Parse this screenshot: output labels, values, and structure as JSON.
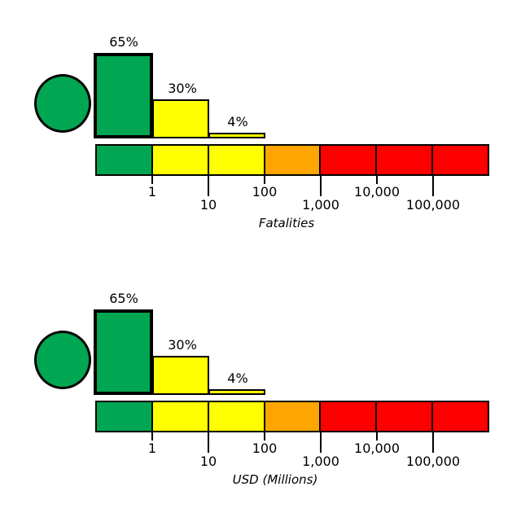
{
  "colors": {
    "green": "#00A651",
    "yellow": "#FFFF00",
    "orange": "#FFA500",
    "red": "#FF0000",
    "border": "#000000",
    "background": "#FFFFFF"
  },
  "charts": [
    {
      "axis_label": "Fatalities",
      "marker": {
        "shape": "circle",
        "color": "#00A651"
      },
      "bars": [
        {
          "label": "65%",
          "value_pct": 65,
          "color": "#00A651",
          "bin": "<1",
          "highlighted": true
        },
        {
          "label": "30%",
          "value_pct": 30,
          "color": "#FFFF00",
          "bin": "1-10",
          "highlighted": false
        },
        {
          "label": "4%",
          "value_pct": 4,
          "color": "#FFFF00",
          "bin": "10-100",
          "highlighted": false
        }
      ],
      "scale_segments": [
        "#00A651",
        "#FFFF00",
        "#FFFF00",
        "#FFA500",
        "#FF0000",
        "#FF0000",
        "#FF0000"
      ],
      "tick_labels": [
        "1",
        "10",
        "100",
        "1,000",
        "10,000",
        "100,000"
      ]
    },
    {
      "axis_label": "USD (Millions)",
      "marker": {
        "shape": "circle",
        "color": "#00A651"
      },
      "bars": [
        {
          "label": "65%",
          "value_pct": 65,
          "color": "#00A651",
          "bin": "<1",
          "highlighted": true
        },
        {
          "label": "30%",
          "value_pct": 30,
          "color": "#FFFF00",
          "bin": "1-10",
          "highlighted": false
        },
        {
          "label": "4%",
          "value_pct": 4,
          "color": "#FFFF00",
          "bin": "10-100",
          "highlighted": false
        }
      ],
      "scale_segments": [
        "#00A651",
        "#FFFF00",
        "#FFFF00",
        "#FFA500",
        "#FF0000",
        "#FF0000",
        "#FF0000"
      ],
      "tick_labels": [
        "1",
        "10",
        "100",
        "1,000",
        "10,000",
        "100,000"
      ]
    }
  ],
  "chart_data": [
    {
      "type": "bar",
      "title": "",
      "xlabel": "Fatalities",
      "ylabel": "",
      "x_scale": "log",
      "categories": [
        "<1",
        "1-10",
        "10-100",
        "100-1,000",
        "1,000-10,000",
        "10,000-100,000",
        ">100,000"
      ],
      "values": [
        65,
        30,
        4,
        0,
        0,
        0,
        0
      ],
      "bar_labels": [
        "65%",
        "30%",
        "4%"
      ],
      "x_tick_labels": [
        "1",
        "10",
        "100",
        "1,000",
        "10,000",
        "100,000"
      ],
      "color_scale_segments": [
        "green",
        "yellow",
        "yellow",
        "orange",
        "red",
        "red",
        "red"
      ],
      "marker": "green circle (overall risk indicator)",
      "highlighted_bar": "<1 (65%, thick black outline)",
      "grid": false,
      "legend": false
    },
    {
      "type": "bar",
      "title": "",
      "xlabel": "USD (Millions)",
      "ylabel": "",
      "x_scale": "log",
      "categories": [
        "<1",
        "1-10",
        "10-100",
        "100-1,000",
        "1,000-10,000",
        "10,000-100,000",
        ">100,000"
      ],
      "values": [
        65,
        30,
        4,
        0,
        0,
        0,
        0
      ],
      "bar_labels": [
        "65%",
        "30%",
        "4%"
      ],
      "x_tick_labels": [
        "1",
        "10",
        "100",
        "1,000",
        "10,000",
        "100,000"
      ],
      "color_scale_segments": [
        "green",
        "yellow",
        "yellow",
        "orange",
        "red",
        "red",
        "red"
      ],
      "marker": "green circle (overall risk indicator)",
      "highlighted_bar": "<1 (65%, thick black outline)",
      "grid": false,
      "legend": false
    }
  ]
}
